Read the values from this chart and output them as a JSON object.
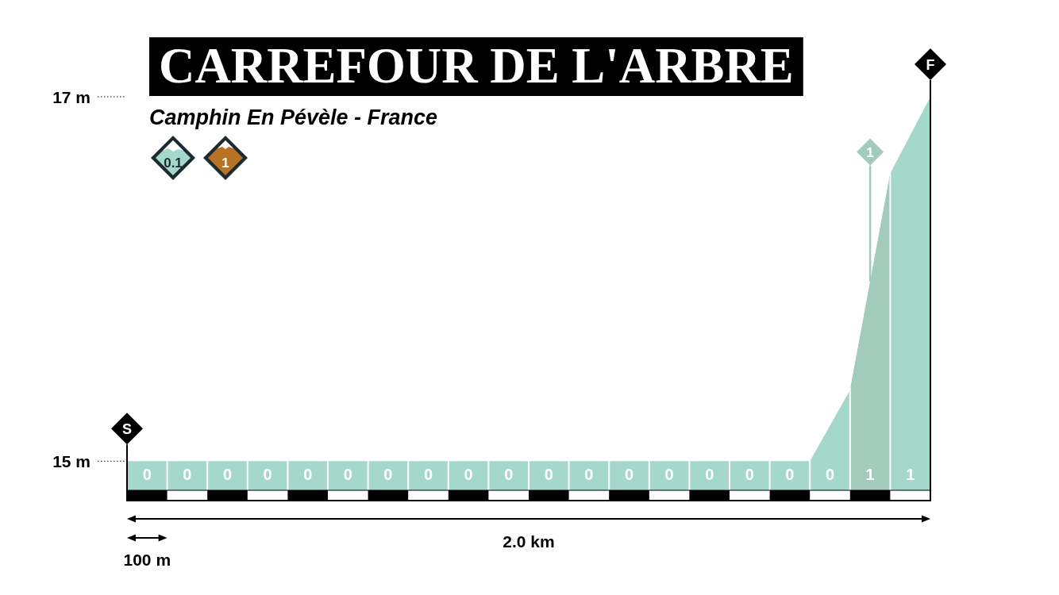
{
  "chart_data": {
    "type": "area",
    "title": "CARREFOUR DE L'ARBRE",
    "subtitle": "Camphin En Pévèle - France",
    "categories": [
      null,
      null,
      null,
      null,
      null,
      null,
      null,
      null,
      null,
      null,
      null,
      null,
      null,
      null,
      null,
      null,
      null,
      null,
      null,
      null,
      null
    ],
    "values": [
      15,
      15,
      15,
      15,
      15,
      15,
      15,
      15,
      15,
      15,
      15,
      15,
      15,
      15,
      15,
      15,
      15,
      15,
      15.39,
      16.58,
      17
    ],
    "color": "#a4d8cb",
    "ylim": [
      14.84,
      17
    ],
    "yticks": [
      {
        "value": 15,
        "label": "15 m"
      },
      {
        "value": 17,
        "label": "17 m"
      }
    ],
    "tick_labels": "y",
    "grid": "x",
    "annotations": [
      "0.1",
      "1",
      "2.0 km",
      "100 m",
      "S",
      "F",
      "1",
      "0",
      "0",
      "0",
      "0",
      "0",
      "0",
      "0",
      "0",
      "0",
      "0",
      "0",
      "0",
      "0",
      "0",
      "0",
      "0",
      "0",
      "0",
      "1",
      "1"
    ]
  }
}
